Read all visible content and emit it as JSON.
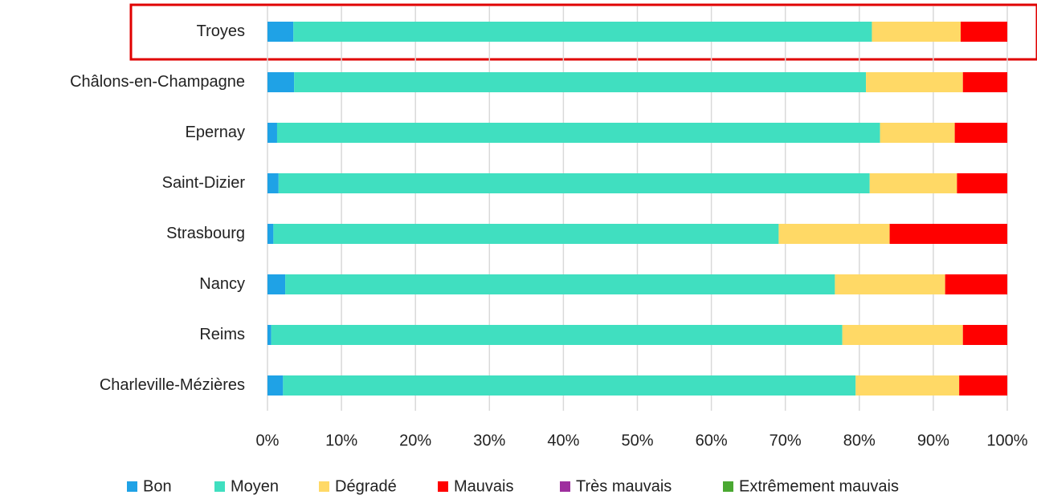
{
  "chart_data": {
    "type": "stacked-barh",
    "categories": [
      "Troyes",
      "Châlons-en-Champagne",
      "Epernay",
      "Saint-Dizier",
      "Strasbourg",
      "Nancy",
      "Reims",
      "Charleville-Mézières"
    ],
    "series": [
      {
        "name": "Bon",
        "color": "#1fa2e6",
        "values": [
          3.5,
          3.6,
          1.3,
          1.5,
          0.8,
          2.4,
          0.5,
          2.1
        ]
      },
      {
        "name": "Moyen",
        "color": "#40dfc0",
        "values": [
          78.2,
          77.3,
          81.5,
          79.9,
          68.3,
          74.3,
          77.2,
          77.4
        ]
      },
      {
        "name": "Dégradé",
        "color": "#ffd966",
        "values": [
          12.0,
          13.1,
          10.1,
          11.8,
          15.0,
          14.9,
          16.3,
          14.0
        ]
      },
      {
        "name": "Mauvais",
        "color": "#ff0000",
        "values": [
          6.3,
          6.0,
          7.1,
          6.8,
          15.9,
          8.4,
          6.0,
          6.5
        ]
      },
      {
        "name": "Très mauvais",
        "color": "#9e2f9e",
        "values": [
          0,
          0,
          0,
          0,
          0,
          0,
          0,
          0
        ]
      },
      {
        "name": "Extrêmement mauvais",
        "color": "#4aa832",
        "values": [
          0,
          0,
          0,
          0,
          0,
          0,
          0,
          0
        ]
      }
    ],
    "xlim": [
      0,
      100
    ],
    "xticks": [
      {
        "value": 0,
        "label": "0%"
      },
      {
        "value": 10,
        "label": "10%"
      },
      {
        "value": 20,
        "label": "20%"
      },
      {
        "value": 30,
        "label": "30%"
      },
      {
        "value": 40,
        "label": "40%"
      },
      {
        "value": 50,
        "label": "50%"
      },
      {
        "value": 60,
        "label": "60%"
      },
      {
        "value": 70,
        "label": "70%"
      },
      {
        "value": 80,
        "label": "80%"
      },
      {
        "value": 90,
        "label": "90%"
      },
      {
        "value": 100,
        "label": "100%"
      }
    ],
    "grid": true,
    "legend": "bottom"
  }
}
